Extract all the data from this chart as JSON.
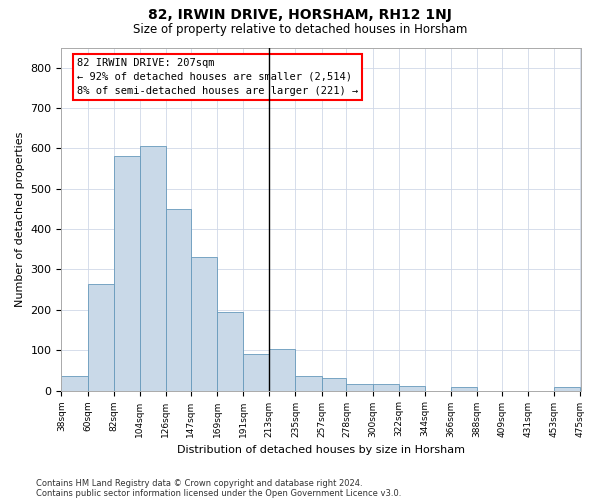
{
  "title": "82, IRWIN DRIVE, HORSHAM, RH12 1NJ",
  "subtitle": "Size of property relative to detached houses in Horsham",
  "xlabel": "Distribution of detached houses by size in Horsham",
  "ylabel": "Number of detached properties",
  "footnote1": "Contains HM Land Registry data © Crown copyright and database right 2024.",
  "footnote2": "Contains public sector information licensed under the Open Government Licence v3.0.",
  "bar_edges": [
    38,
    60,
    82,
    104,
    126,
    147,
    169,
    191,
    213,
    235,
    257,
    278,
    300,
    322,
    344,
    366,
    388,
    409,
    431,
    453,
    475
  ],
  "bar_heights": [
    37,
    265,
    580,
    605,
    450,
    330,
    195,
    90,
    103,
    37,
    32,
    17,
    17,
    11,
    0,
    8,
    0,
    0,
    0,
    8
  ],
  "bar_color": "#c9d9e8",
  "bar_edge_color": "#6699bb",
  "vline_x": 213,
  "vline_color": "black",
  "annotation_box_text": "82 IRWIN DRIVE: 207sqm\n← 92% of detached houses are smaller (2,514)\n8% of semi-detached houses are larger (221) →",
  "annotation_box_color": "white",
  "annotation_box_edge_color": "red",
  "ylim": [
    0,
    850
  ],
  "yticks": [
    0,
    100,
    200,
    300,
    400,
    500,
    600,
    700,
    800
  ],
  "bg_color": "#ffffff",
  "plot_bg_color": "#ffffff",
  "grid_color": "#d0d8e8"
}
